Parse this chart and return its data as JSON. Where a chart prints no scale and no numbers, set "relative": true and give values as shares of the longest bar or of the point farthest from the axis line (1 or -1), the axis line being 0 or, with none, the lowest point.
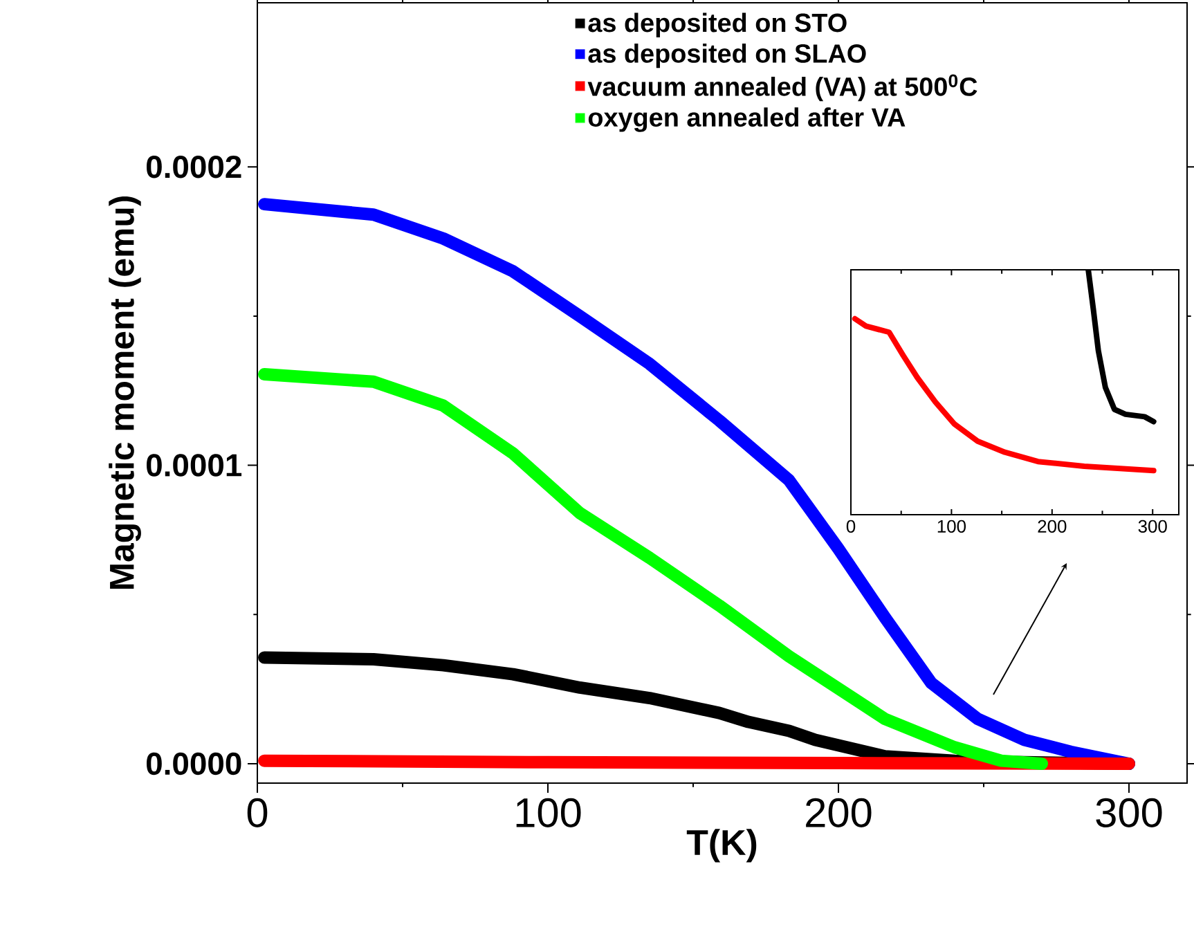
{
  "chart_data": [
    {
      "type": "line",
      "xlabel": "T(K)",
      "ylabel": "Magnetic moment (emu)",
      "xlim": [
        0,
        320
      ],
      "ylim": [
        -6.5e-06,
        0.000255
      ],
      "xticks": [
        0,
        100,
        200,
        300
      ],
      "yticks": [
        {
          "value": 0,
          "label": "0.0000"
        },
        {
          "value": 0.0001,
          "label": "0.0001"
        },
        {
          "value": 0.0002,
          "label": "0.0002"
        }
      ],
      "legend": "top",
      "series": [
        {
          "name": "as deposited on STO",
          "color": "#000000",
          "x": [
            2.4,
            40,
            64,
            88,
            111,
            135,
            159,
            169,
            183,
            192,
            216,
            240,
            264,
            300
          ],
          "values": [
            3.56e-05,
            3.5e-05,
            3.3e-05,
            3e-05,
            2.55e-05,
            2.2e-05,
            1.7e-05,
            1.4e-05,
            1.1e-05,
            8e-06,
            2.5e-06,
            1e-06,
            5e-07,
            0
          ]
        },
        {
          "name": "as deposited on SLAO",
          "color": "#0000ff",
          "x": [
            2.4,
            40,
            64,
            88,
            111,
            135,
            159,
            183,
            200,
            216,
            232,
            248,
            264,
            280,
            300
          ],
          "values": [
            0.0001875,
            0.000184,
            0.000176,
            0.000165,
            0.00015,
            0.000134,
            0.000115,
            9.5e-05,
            7.2e-05,
            4.9e-05,
            2.7e-05,
            1.5e-05,
            8e-06,
            4e-06,
            0
          ]
        },
        {
          "name": "vacuum annealed (VA) at 500$^{0}$C",
          "color": "#ff0000",
          "x": [
            2.4,
            100,
            200,
            300
          ],
          "values": [
            1e-06,
            5e-07,
            2e-07,
            0
          ]
        },
        {
          "name": "oxygen annealed after VA",
          "color": "#00ff00",
          "x": [
            2.4,
            40,
            64,
            88,
            111,
            135,
            159,
            183,
            205,
            216,
            240,
            256,
            270
          ],
          "values": [
            0.0001305,
            0.000128,
            0.00012,
            0.000104,
            8.4e-05,
            6.9e-05,
            5.3e-05,
            3.6e-05,
            2.2e-05,
            1.5e-05,
            5.5e-06,
            1e-06,
            0
          ]
        }
      ]
    },
    {
      "type": "line",
      "relative": true,
      "tick_labels": "x",
      "xlim": [
        0,
        326
      ],
      "xticks": [
        0,
        100,
        200,
        300
      ],
      "series": [
        {
          "color": "#ff0000",
          "x": [
            4,
            15,
            38,
            52,
            66,
            84,
            103,
            126,
            153,
            186,
            232,
            301
          ],
          "values": [
            0.8,
            0.77,
            0.745,
            0.65,
            0.56,
            0.46,
            0.37,
            0.3,
            0.255,
            0.217,
            0.198,
            0.18
          ]
        },
        {
          "color": "#000000",
          "x": [
            236,
            241,
            246,
            253,
            262,
            273,
            292,
            301
          ],
          "values": [
            1.0,
            0.84,
            0.67,
            0.52,
            0.43,
            0.41,
            0.4,
            0.38
          ]
        }
      ]
    }
  ]
}
